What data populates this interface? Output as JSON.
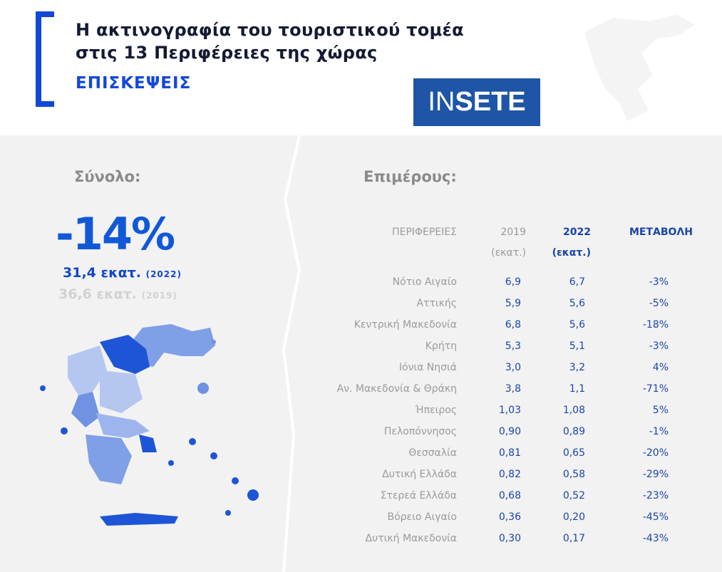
{
  "header": {
    "title_line1": "Η ακτινογραφία του τουριστικού τομέα",
    "title_line2": "στις 13 Περιφέρειες της χώρας",
    "subtitle": "ΕΠΙΣΚΕΨΕΙΣ",
    "logo_a": "IN",
    "logo_b": "SETE"
  },
  "total": {
    "label": "Σύνολο:",
    "change": "-14%",
    "value_2022": "31,4 εκατ.",
    "year_2022": "(2022)",
    "value_2019": "36,6 εκατ.",
    "year_2019": "(2019)"
  },
  "parts": {
    "label": "Επιμέρους:"
  },
  "colors": {
    "accent": "#1248d8",
    "title": "#141a33",
    "logo_bg": "#1e55a6",
    "muted": "#9a9a9a"
  },
  "chart_data": {
    "type": "table",
    "columns": [
      "ΠΕΡΙΦΕΡΕΙΕΣ",
      "2019",
      "2022",
      "ΜΕΤΑΒΟΛΗ"
    ],
    "column_units": [
      "",
      "(εκατ.)",
      "(εκατ.)",
      ""
    ],
    "rows": [
      [
        "Νότιο Αιγαίο",
        "6,9",
        "6,7",
        "-3%"
      ],
      [
        "Αττικής",
        "5,9",
        "5,6",
        "-5%"
      ],
      [
        "Κεντρική Μακεδονία",
        "6,8",
        "5,6",
        "-18%"
      ],
      [
        "Κρήτη",
        "5,3",
        "5,1",
        "-3%"
      ],
      [
        "Ιόνια Νησιά",
        "3,0",
        "3,2",
        "4%"
      ],
      [
        "Αν. Μακεδονία & Θράκη",
        "3,8",
        "1,1",
        "-71%"
      ],
      [
        "Ήπειρος",
        "1,03",
        "1,08",
        "5%"
      ],
      [
        "Πελοπόννησος",
        "0,90",
        "0,89",
        "-1%"
      ],
      [
        "Θεσσαλία",
        "0,81",
        "0,65",
        "-20%"
      ],
      [
        "Δυτική Ελλάδα",
        "0,82",
        "0,58",
        "-29%"
      ],
      [
        "Στερεά Ελλάδα",
        "0,68",
        "0,52",
        "-23%"
      ],
      [
        "Βόρειο Αιγαίο",
        "0,36",
        "0,20",
        "-45%"
      ],
      [
        "Δυτική Μακεδονία",
        "0,30",
        "0,17",
        "-43%"
      ]
    ]
  }
}
